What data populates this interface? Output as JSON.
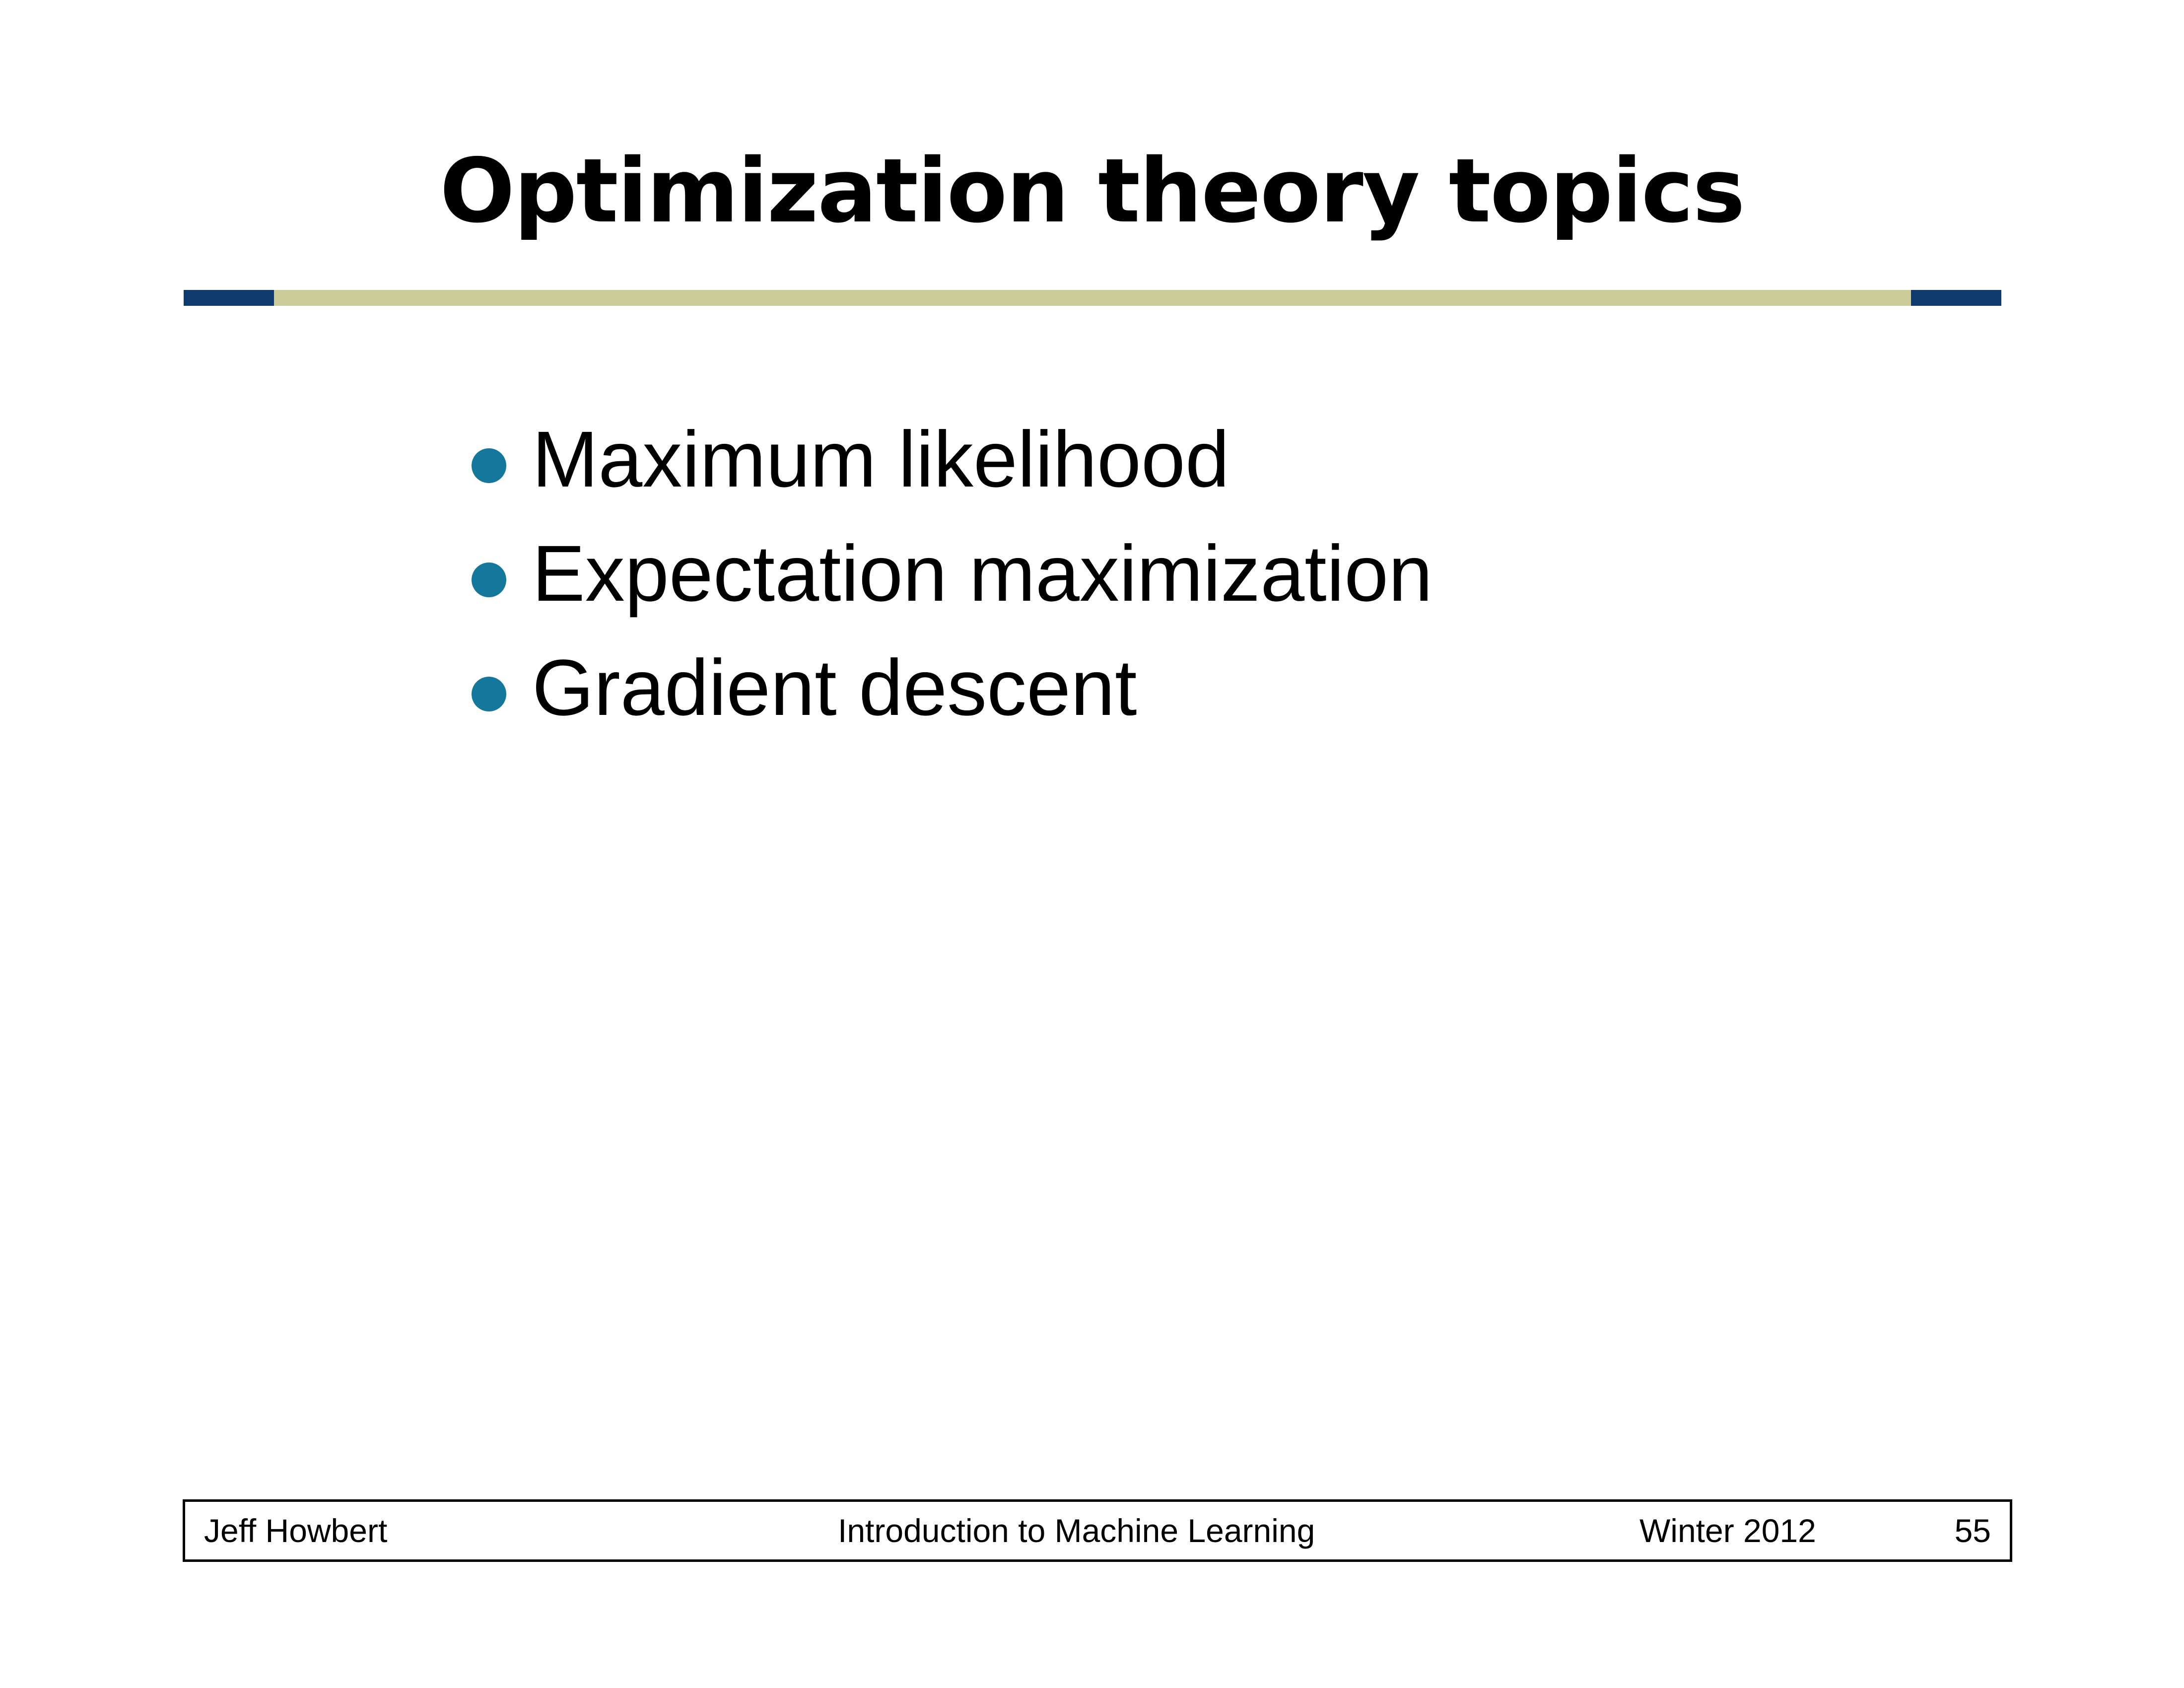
{
  "slide": {
    "title": "Optimization theory topics",
    "bullets": [
      "Maximum likelihood",
      "Expectation maximization",
      "Gradient descent"
    ]
  },
  "footer": {
    "author": "Jeff Howbert",
    "course": "Introduction to Machine Learning",
    "term": "Winter 2012",
    "page_number": "55"
  },
  "colors": {
    "rule_accent": "#0f3a6e",
    "rule_main": "#cccc99",
    "bullet": "#13789c"
  }
}
